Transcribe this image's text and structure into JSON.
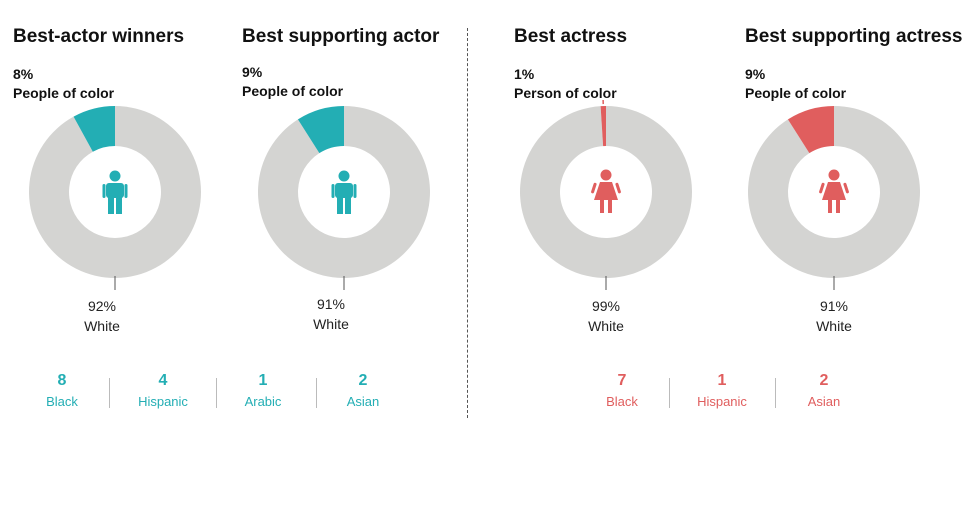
{
  "colors": {
    "teal": "#23aeb4",
    "red": "#e05e5e",
    "grey": "#d4d4d2"
  },
  "chart_data": [
    {
      "type": "pie",
      "title": "Best-actor winners",
      "accent": "teal",
      "icon": "male-figure-icon",
      "slices": [
        {
          "label": "People of color",
          "value": 8,
          "text": "8%"
        },
        {
          "label": "White",
          "value": 92,
          "text": "92%"
        }
      ]
    },
    {
      "type": "pie",
      "title": "Best supporting actor",
      "accent": "teal",
      "icon": "male-figure-icon",
      "slices": [
        {
          "label": "People of color",
          "value": 9,
          "text": "9%"
        },
        {
          "label": "White",
          "value": 91,
          "text": "91%"
        }
      ]
    },
    {
      "type": "pie",
      "title": "Best actress",
      "accent": "red",
      "icon": "female-figure-icon",
      "slices": [
        {
          "label": "Person of color",
          "value": 1,
          "text": "1%"
        },
        {
          "label": "White",
          "value": 99,
          "text": "99%"
        }
      ]
    },
    {
      "type": "pie",
      "title": "Best supporting actress",
      "accent": "red",
      "icon": "female-figure-icon",
      "slices": [
        {
          "label": "People of color",
          "value": 9,
          "text": "9%"
        },
        {
          "label": "White",
          "value": 91,
          "text": "91%"
        }
      ]
    }
  ],
  "actor_breakdown": [
    {
      "count": "8",
      "label": "Black"
    },
    {
      "count": "4",
      "label": "Hispanic"
    },
    {
      "count": "1",
      "label": "Arabic"
    },
    {
      "count": "2",
      "label": "Asian"
    }
  ],
  "actress_breakdown": [
    {
      "count": "7",
      "label": "Black"
    },
    {
      "count": "1",
      "label": "Hispanic"
    },
    {
      "count": "2",
      "label": "Asian"
    }
  ]
}
